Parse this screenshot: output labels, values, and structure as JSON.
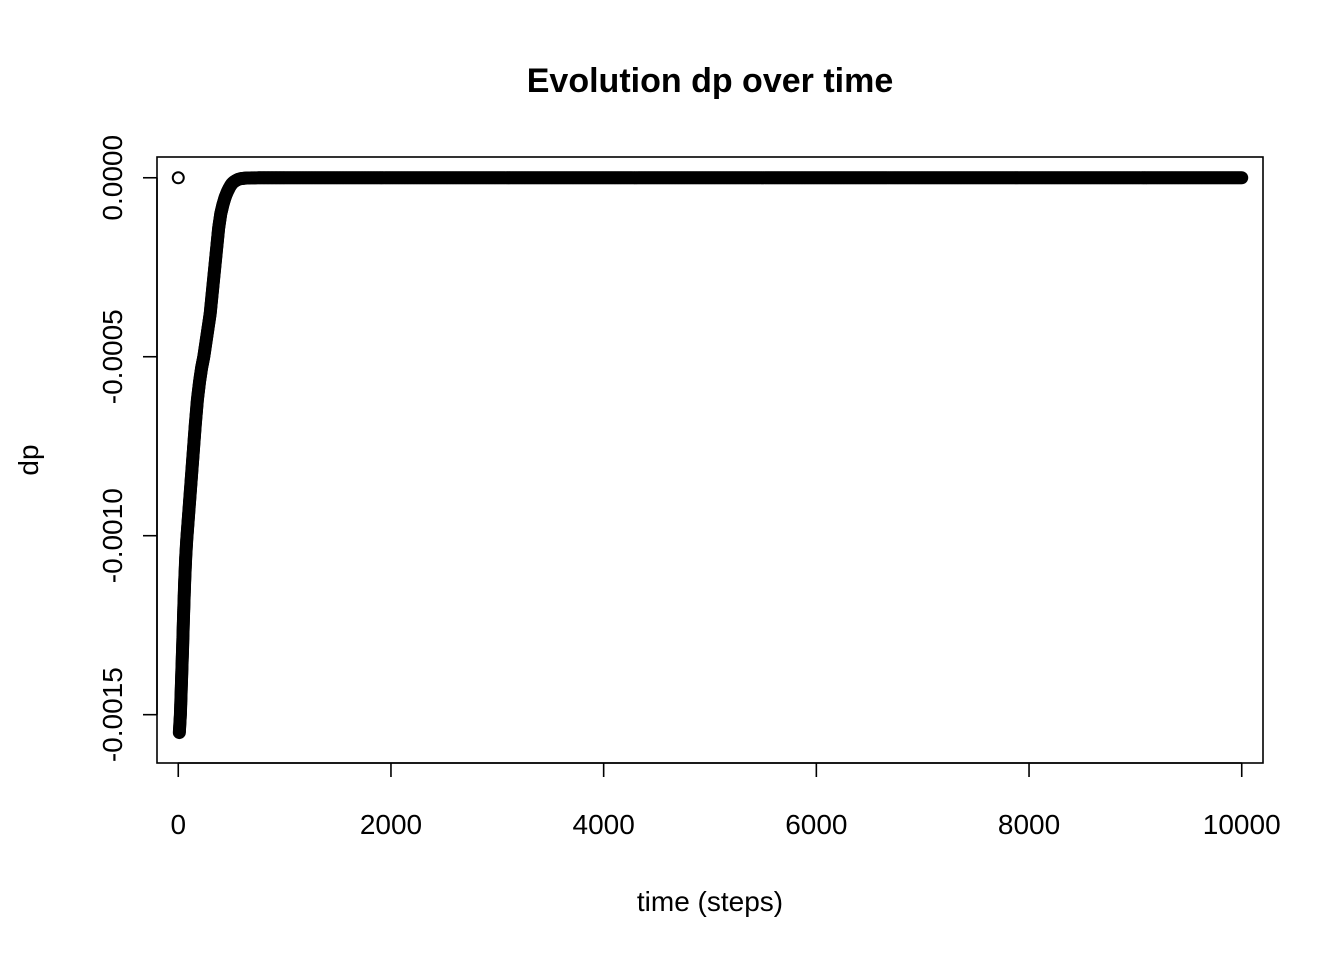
{
  "chart_data": {
    "type": "scatter",
    "title": "Evolution dp over time",
    "xlabel": "time (steps)",
    "ylabel": "dp",
    "xlim": [
      -200,
      10200
    ],
    "ylim": [
      -0.001635,
      5.8e-05
    ],
    "x_ticks": [
      0,
      2000,
      4000,
      6000,
      8000,
      10000
    ],
    "x_tick_labels": [
      "0",
      "2000",
      "4000",
      "6000",
      "8000",
      "10000"
    ],
    "y_ticks": [
      0.0,
      -0.0005,
      -0.001,
      -0.0015
    ],
    "y_tick_labels": [
      "0.0000",
      "-0.0005",
      "-0.0010",
      "-0.0015"
    ],
    "grid": false,
    "marker": "open-circle",
    "series": [
      {
        "points_x": [
          0,
          10,
          20,
          30,
          40,
          50,
          60,
          70,
          80,
          90,
          100,
          120,
          140,
          160,
          180,
          200,
          220,
          240,
          260,
          280,
          300,
          320,
          340,
          360,
          380,
          400,
          420,
          440,
          460,
          480,
          500,
          520,
          540,
          560,
          580,
          600,
          630,
          660,
          700,
          750,
          800,
          900,
          1000,
          1500,
          2000,
          3000,
          4000,
          5000,
          6000,
          7000,
          8000,
          9000,
          10000
        ],
        "points_y": [
          0.0,
          -0.00155,
          -0.0015,
          -0.00141,
          -0.00132,
          -0.00122,
          -0.00113,
          -0.00106,
          -0.00101,
          -0.00097,
          -0.00093,
          -0.00085,
          -0.00077,
          -0.00069,
          -0.00062,
          -0.00057,
          -0.00053,
          -0.0005,
          -0.00046,
          -0.00042,
          -0.00038,
          -0.00032,
          -0.00026,
          -0.0002,
          -0.00014,
          -0.0001,
          -7.5e-05,
          -5.5e-05,
          -4e-05,
          -2.8e-05,
          -1.8e-05,
          -1.2e-05,
          -8e-06,
          -5e-06,
          -3e-06,
          -2e-06,
          -1e-06,
          -6e-07,
          -3e-07,
          -1e-07,
          0.0,
          0.0,
          0.0,
          0.0,
          0.0,
          0.0,
          0.0,
          0.0,
          0.0,
          0.0,
          0.0,
          0.0,
          0.0
        ]
      }
    ]
  }
}
